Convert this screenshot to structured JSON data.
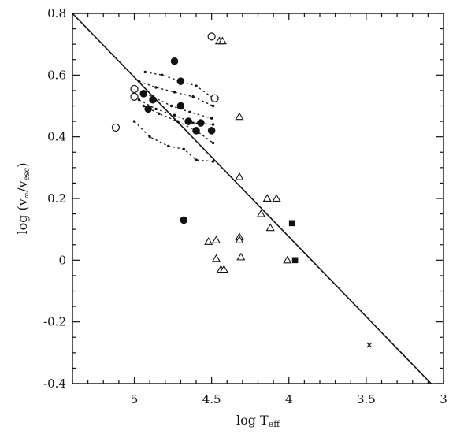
{
  "chart_data": {
    "type": "scatter",
    "title": "",
    "xlabel": "log T",
    "xlabel_sub": "eff",
    "ylabel": "log (v",
    "ylabel_sub1": "∞",
    "ylabel_mid": "/v",
    "ylabel_sub2": "esc",
    "ylabel_end": ")",
    "xlim": [
      5.4,
      3.0
    ],
    "ylim": [
      -0.4,
      0.8
    ],
    "x_reversed": true,
    "x_ticks": [
      5,
      4.5,
      4,
      3.5,
      3
    ],
    "y_ticks": [
      0.8,
      0.6,
      0.4,
      0.2,
      0,
      -0.2,
      -0.4
    ],
    "x_tick_labels": [
      "5",
      "4.5",
      "4",
      "3.5",
      "3"
    ],
    "y_tick_labels": [
      "0.8",
      "0.6",
      "0.4",
      "0.2",
      "0",
      "-0.2",
      "-0.4"
    ],
    "grid": false,
    "legend": "none",
    "fit_line": {
      "x": [
        5.4,
        3.08
      ],
      "y": [
        0.8,
        -0.4
      ]
    },
    "series": [
      {
        "marker": "filled-circle",
        "points": [
          [
            4.74,
            0.645
          ],
          [
            4.7,
            0.58
          ],
          [
            4.94,
            0.54
          ],
          [
            4.91,
            0.49
          ],
          [
            4.88,
            0.52
          ],
          [
            4.7,
            0.5
          ],
          [
            4.65,
            0.45
          ],
          [
            4.6,
            0.42
          ],
          [
            4.57,
            0.445
          ],
          [
            4.5,
            0.42
          ],
          [
            4.68,
            0.13
          ]
        ]
      },
      {
        "marker": "open-circle",
        "points": [
          [
            5.12,
            0.43
          ],
          [
            5.0,
            0.53
          ],
          [
            5.0,
            0.555
          ],
          [
            4.5,
            0.725
          ],
          [
            4.48,
            0.525
          ]
        ]
      },
      {
        "marker": "open-triangle",
        "points": [
          [
            4.45,
            0.71
          ],
          [
            4.43,
            0.71
          ],
          [
            4.32,
            0.465
          ],
          [
            4.32,
            0.27
          ],
          [
            4.14,
            0.2
          ],
          [
            4.08,
            0.2
          ],
          [
            4.18,
            0.15
          ],
          [
            4.12,
            0.105
          ],
          [
            4.52,
            0.06
          ],
          [
            4.47,
            0.065
          ],
          [
            4.32,
            0.075
          ],
          [
            4.32,
            0.065
          ],
          [
            4.47,
            0.005
          ],
          [
            4.31,
            0.01
          ],
          [
            4.01,
            0.0
          ],
          [
            4.44,
            -0.03
          ],
          [
            4.42,
            -0.03
          ]
        ]
      },
      {
        "marker": "filled-square",
        "points": [
          [
            3.98,
            0.12
          ],
          [
            3.96,
            0.0
          ]
        ]
      },
      {
        "marker": "cross",
        "points": [
          [
            3.48,
            -0.275
          ]
        ]
      }
    ],
    "tracks": [
      {
        "points": [
          [
            4.93,
            0.61
          ],
          [
            4.82,
            0.6
          ],
          [
            4.7,
            0.58
          ],
          [
            4.6,
            0.565
          ],
          [
            4.49,
            0.525
          ]
        ]
      },
      {
        "points": [
          [
            4.97,
            0.58
          ],
          [
            4.86,
            0.56
          ],
          [
            4.74,
            0.545
          ],
          [
            4.62,
            0.53
          ],
          [
            4.49,
            0.5
          ]
        ]
      },
      {
        "points": [
          [
            4.99,
            0.55
          ],
          [
            4.88,
            0.53
          ],
          [
            4.76,
            0.5
          ],
          [
            4.64,
            0.48
          ],
          [
            4.5,
            0.46
          ]
        ]
      },
      {
        "points": [
          [
            4.97,
            0.52
          ],
          [
            4.86,
            0.49
          ],
          [
            4.74,
            0.47
          ],
          [
            4.62,
            0.445
          ],
          [
            4.49,
            0.44
          ]
        ]
      },
      {
        "points": [
          [
            4.94,
            0.5
          ],
          [
            4.84,
            0.475
          ],
          [
            4.72,
            0.45
          ],
          [
            4.6,
            0.42
          ],
          [
            4.49,
            0.38
          ]
        ]
      },
      {
        "points": [
          [
            5.0,
            0.45
          ],
          [
            4.9,
            0.4
          ],
          [
            4.78,
            0.37
          ],
          [
            4.68,
            0.36
          ],
          [
            4.6,
            0.325
          ],
          [
            4.49,
            0.32
          ]
        ]
      }
    ]
  }
}
